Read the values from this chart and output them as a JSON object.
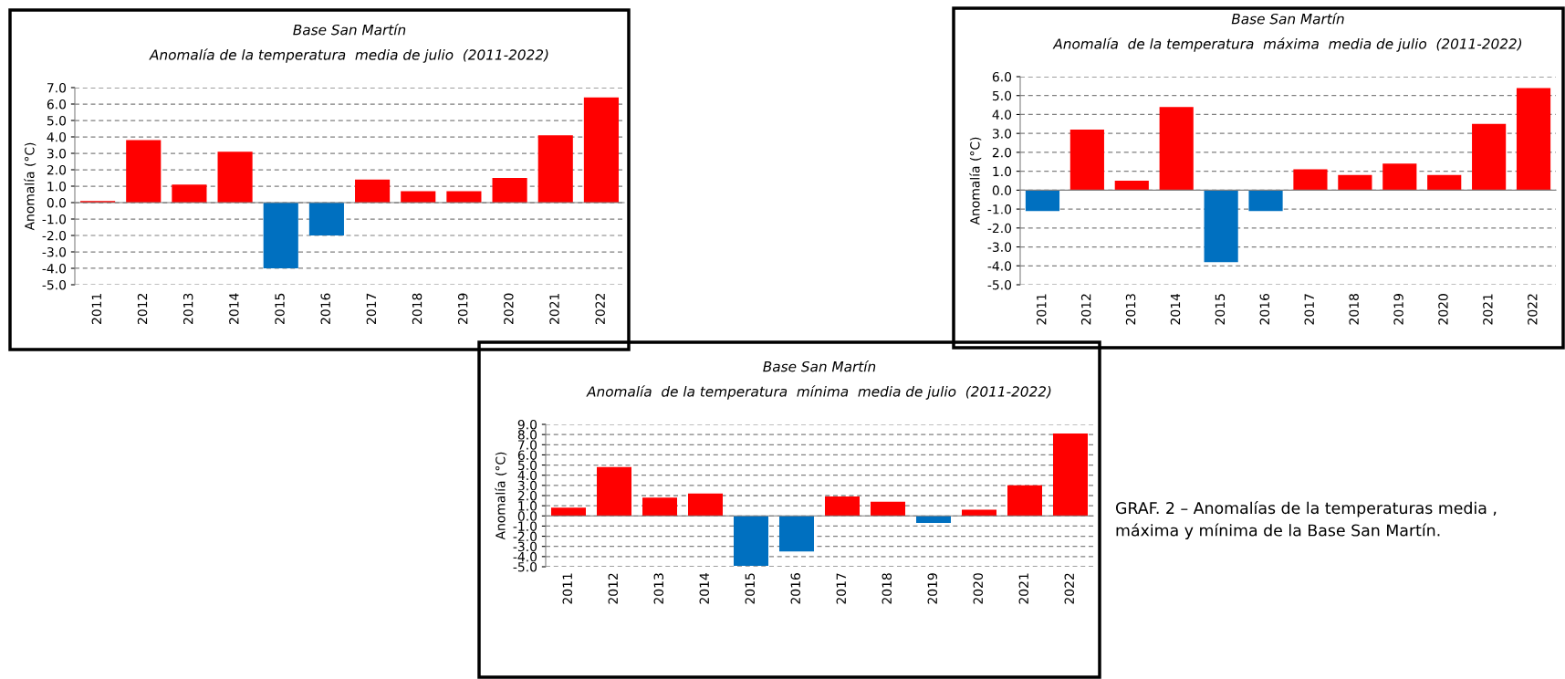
{
  "chart_data": [
    {
      "type": "bar",
      "title": "Base San Martín",
      "subtitle": "Anomalía de la temperatura  media de julio  (2011-2022)",
      "ylabel": "Anomalía (°C)",
      "categories": [
        "2011",
        "2012",
        "2013",
        "2014",
        "2015",
        "2016",
        "2017",
        "2018",
        "2019",
        "2020",
        "2021",
        "2022"
      ],
      "values": [
        0.1,
        3.8,
        1.1,
        3.1,
        -4.0,
        -2.0,
        1.4,
        0.7,
        0.7,
        1.5,
        4.1,
        6.4
      ],
      "colors": [
        "#ff0000",
        "#ff0000",
        "#ff0000",
        "#ff0000",
        "#0070c0",
        "#0070c0",
        "#ff0000",
        "#ff0000",
        "#ff0000",
        "#ff0000",
        "#ff0000",
        "#ff0000"
      ],
      "ylim": [
        -5,
        7
      ],
      "yticks": [
        {
          "value": -5,
          "label": "-5.0"
        },
        {
          "value": -4,
          "label": "-4.0"
        },
        {
          "value": -3,
          "label": "-3.0"
        },
        {
          "value": -2,
          "label": "-2.0"
        },
        {
          "value": -1,
          "label": "-1.0"
        },
        {
          "value": 0,
          "label": "0.0"
        },
        {
          "value": 1,
          "label": "1.0"
        },
        {
          "value": 2,
          "label": "2.0"
        },
        {
          "value": 3,
          "label": "3.0"
        },
        {
          "value": 4,
          "label": "4.0"
        },
        {
          "value": 5,
          "label": "5.0"
        },
        {
          "value": 6,
          "label": "6.0"
        },
        {
          "value": 7,
          "label": "7.0"
        }
      ],
      "grid": "y",
      "line_style": "dashed"
    },
    {
      "type": "bar",
      "title": "Base San Martín",
      "subtitle": "Anomalía  de la temperatura  máxima  media de julio  (2011-2022)",
      "ylabel": "Anomalía (°C)",
      "categories": [
        "2011",
        "2012",
        "2013",
        "2014",
        "2015",
        "2016",
        "2017",
        "2018",
        "2019",
        "2020",
        "2021",
        "2022"
      ],
      "values": [
        -1.1,
        3.2,
        0.5,
        4.4,
        -3.8,
        -1.1,
        1.1,
        0.8,
        1.4,
        0.8,
        3.5,
        5.4
      ],
      "colors": [
        "#0070c0",
        "#ff0000",
        "#ff0000",
        "#ff0000",
        "#0070c0",
        "#0070c0",
        "#ff0000",
        "#ff0000",
        "#ff0000",
        "#ff0000",
        "#ff0000",
        "#ff0000"
      ],
      "ylim": [
        -5,
        6
      ],
      "yticks": [
        {
          "value": -5,
          "label": "-5.0"
        },
        {
          "value": -4,
          "label": "-4.0"
        },
        {
          "value": -3,
          "label": "-3.0"
        },
        {
          "value": -2,
          "label": "-2.0"
        },
        {
          "value": -1,
          "label": "-1.0"
        },
        {
          "value": 0,
          "label": "0.0"
        },
        {
          "value": 1,
          "label": "1.0"
        },
        {
          "value": 2,
          "label": "2.0"
        },
        {
          "value": 3,
          "label": "3.0"
        },
        {
          "value": 4,
          "label": "4.0"
        },
        {
          "value": 5,
          "label": "5.0"
        },
        {
          "value": 6,
          "label": "6.0"
        }
      ],
      "grid": "y",
      "line_style": "dashed"
    },
    {
      "type": "bar",
      "title": "Base San Martín",
      "subtitle": "Anomalía  de la temperatura  mínima  media de julio  (2011-2022)",
      "ylabel": "Anomalía (°C)",
      "categories": [
        "2011",
        "2012",
        "2013",
        "2014",
        "2015",
        "2016",
        "2017",
        "2018",
        "2019",
        "2020",
        "2021",
        "2022"
      ],
      "values": [
        0.8,
        4.8,
        1.8,
        2.2,
        -4.9,
        -3.5,
        1.9,
        1.4,
        -0.7,
        0.6,
        3.0,
        8.1
      ],
      "colors": [
        "#ff0000",
        "#ff0000",
        "#ff0000",
        "#ff0000",
        "#0070c0",
        "#0070c0",
        "#ff0000",
        "#ff0000",
        "#0070c0",
        "#ff0000",
        "#ff0000",
        "#ff0000"
      ],
      "ylim": [
        -5,
        9
      ],
      "yticks": [
        {
          "value": -5,
          "label": "-5.0"
        },
        {
          "value": -4,
          "label": "-4.0"
        },
        {
          "value": -3,
          "label": "-3.0"
        },
        {
          "value": -2,
          "label": "-2.0"
        },
        {
          "value": -1,
          "label": "-1.0"
        },
        {
          "value": 0,
          "label": "0.0"
        },
        {
          "value": 1,
          "label": "1.0"
        },
        {
          "value": 2,
          "label": "2.0"
        },
        {
          "value": 3,
          "label": "3.0"
        },
        {
          "value": 4,
          "label": "4.0"
        },
        {
          "value": 5,
          "label": "5.0"
        },
        {
          "value": 6,
          "label": "6.0"
        },
        {
          "value": 7,
          "label": "7.0"
        },
        {
          "value": 8,
          "label": "8.0"
        },
        {
          "value": 9,
          "label": "9.0"
        }
      ],
      "grid": "y",
      "line_style": "dashed",
      "annotations": [
        "GRAF. 2 – Anomalías de la temperaturas media , máxima y mínima de la Base San Martín."
      ]
    }
  ]
}
